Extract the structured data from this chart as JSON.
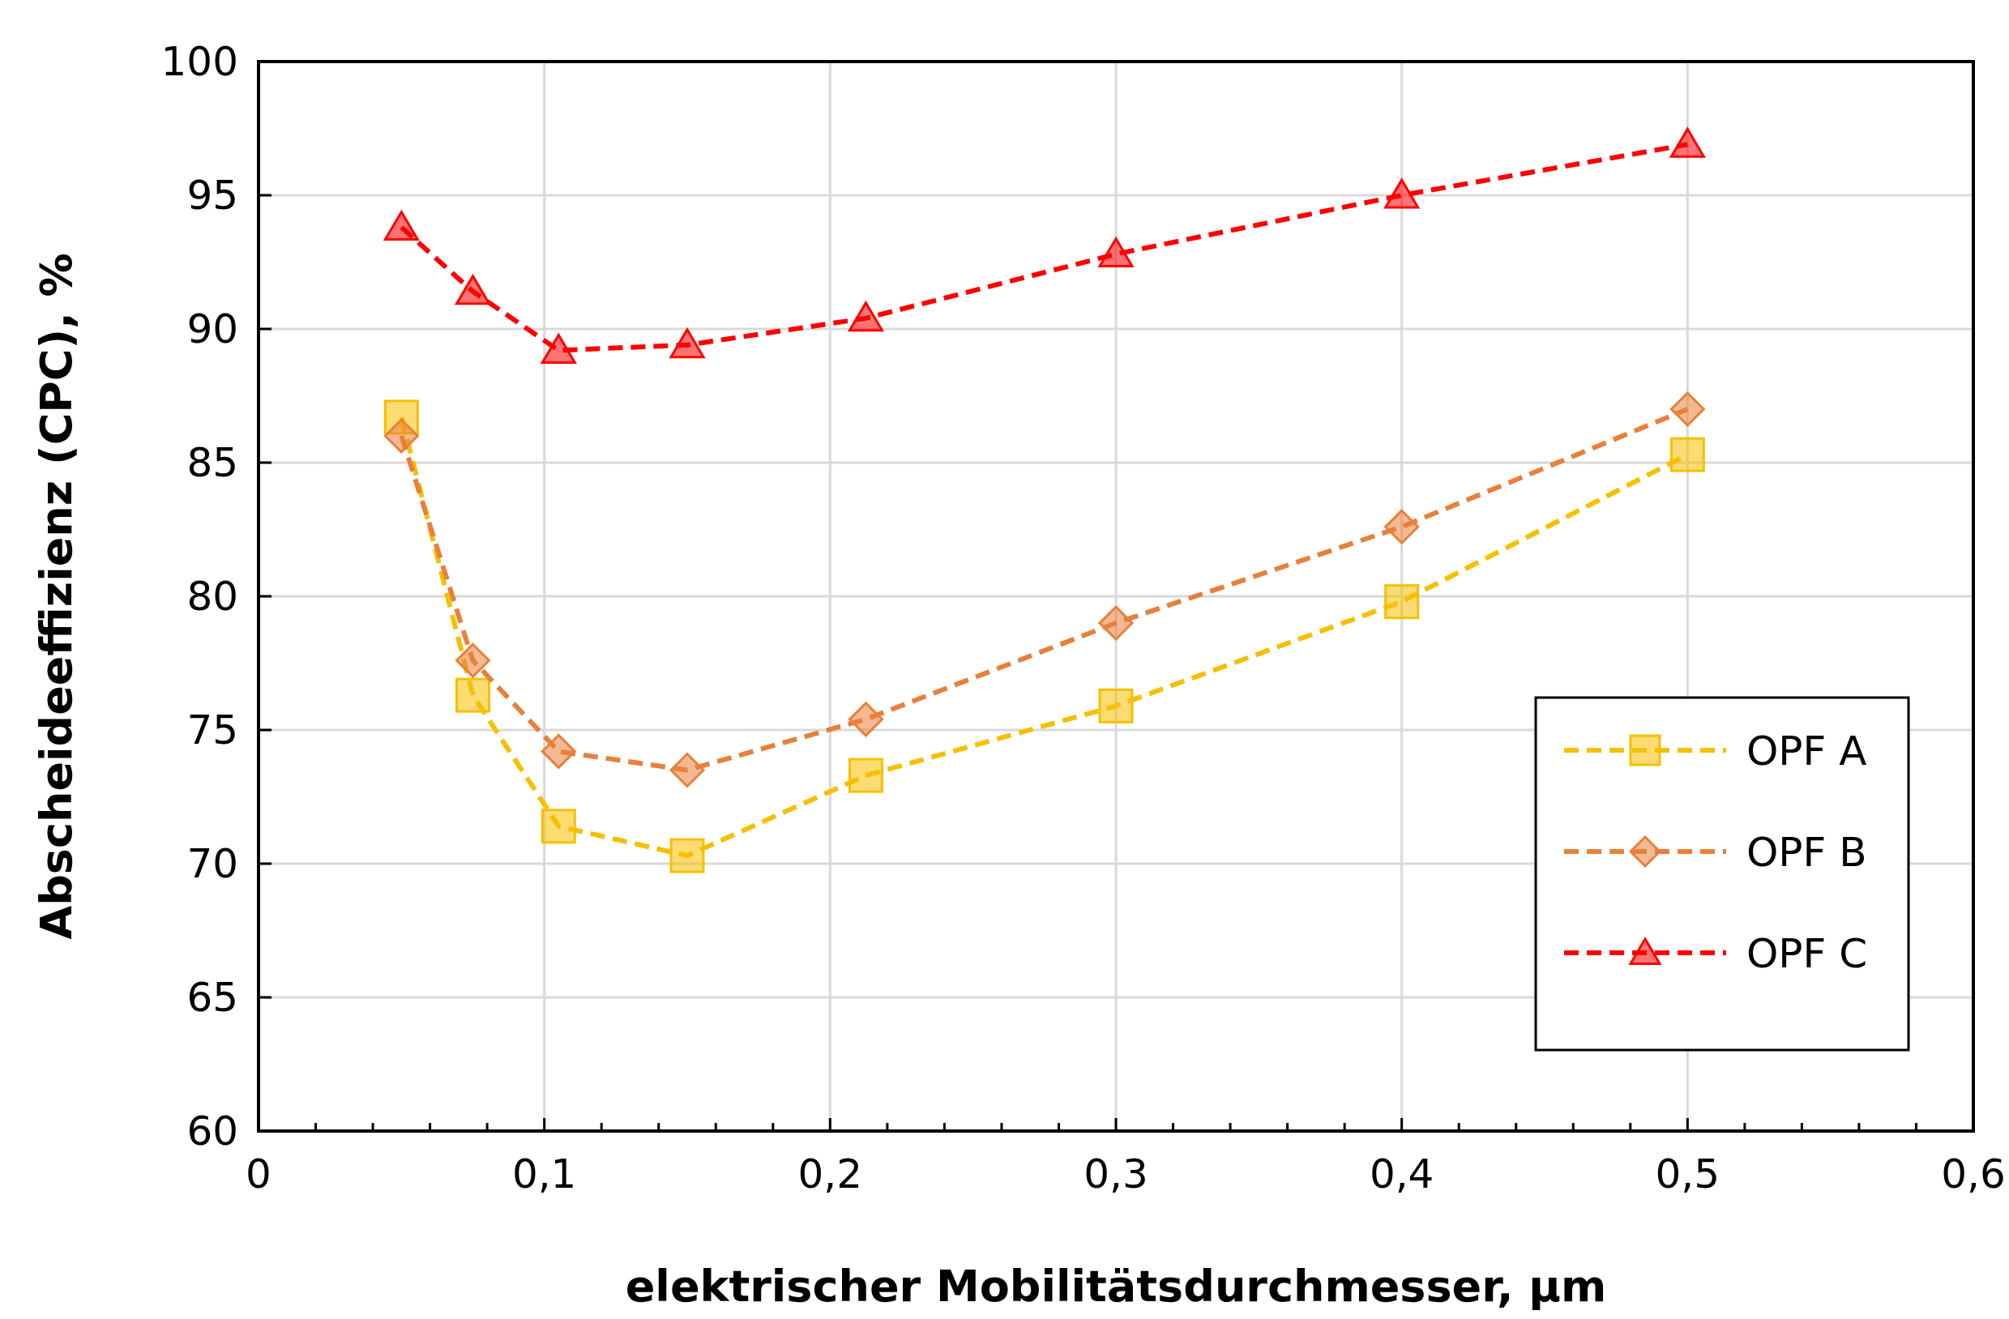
{
  "chart_data": {
    "type": "line",
    "xlabel": "elektrischer Mobilitätsdurchmesser, µm",
    "ylabel": "Abscheideeffizienz (CPC), %",
    "x": [
      0.05,
      0.075,
      0.105,
      0.15,
      0.2125,
      0.3,
      0.4,
      0.5
    ],
    "series": [
      {
        "name": "OPF A",
        "color": "#f5c000",
        "marker": "square",
        "values": [
          86.7,
          76.3,
          71.4,
          70.3,
          73.3,
          75.9,
          79.8,
          85.3
        ]
      },
      {
        "name": "OPF B",
        "color": "#e8803a",
        "marker": "diamond",
        "values": [
          86.0,
          77.6,
          74.2,
          73.5,
          75.4,
          79.0,
          82.6,
          87.0
        ]
      },
      {
        "name": "OPF C",
        "color": "#ff0000",
        "marker": "triangle",
        "values": [
          93.8,
          91.4,
          89.2,
          89.4,
          90.4,
          92.8,
          95.0,
          96.9
        ]
      }
    ],
    "xlim": [
      0,
      0.6
    ],
    "xticks": [
      {
        "value": 0,
        "label": "0"
      },
      {
        "value": 0.02,
        "label": null
      },
      {
        "value": 0.04,
        "label": null
      },
      {
        "value": 0.06,
        "label": null
      },
      {
        "value": 0.08,
        "label": null
      },
      {
        "value": 0.1,
        "label": "0,1"
      },
      {
        "value": 0.12,
        "label": null
      },
      {
        "value": 0.14,
        "label": null
      },
      {
        "value": 0.16,
        "label": null
      },
      {
        "value": 0.18,
        "label": null
      },
      {
        "value": 0.2,
        "label": "0,2"
      },
      {
        "value": 0.22,
        "label": null
      },
      {
        "value": 0.24,
        "label": null
      },
      {
        "value": 0.26,
        "label": null
      },
      {
        "value": 0.28,
        "label": null
      },
      {
        "value": 0.3,
        "label": "0,3"
      },
      {
        "value": 0.32,
        "label": null
      },
      {
        "value": 0.34,
        "label": null
      },
      {
        "value": 0.36,
        "label": null
      },
      {
        "value": 0.38,
        "label": null
      },
      {
        "value": 0.4,
        "label": "0,4"
      },
      {
        "value": 0.42,
        "label": null
      },
      {
        "value": 0.44,
        "label": null
      },
      {
        "value": 0.46,
        "label": null
      },
      {
        "value": 0.48,
        "label": null
      },
      {
        "value": 0.5,
        "label": "0,5"
      },
      {
        "value": 0.52,
        "label": null
      },
      {
        "value": 0.54,
        "label": null
      },
      {
        "value": 0.56,
        "label": null
      },
      {
        "value": 0.58,
        "label": null
      },
      {
        "value": 0.6,
        "label": "0,6"
      }
    ],
    "ylim": [
      60,
      100
    ],
    "yticks": [
      60,
      65,
      70,
      75,
      80,
      85,
      90,
      95,
      100
    ],
    "grid": true,
    "legend": "bottom right",
    "line_style": "dashed"
  }
}
